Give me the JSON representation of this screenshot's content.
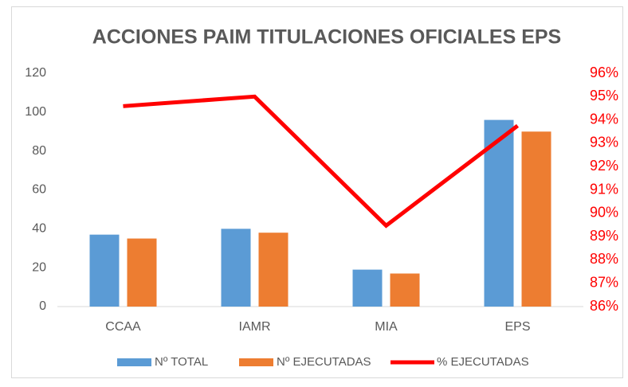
{
  "chart_data": {
    "type": "bar",
    "title": "ACCIONES PAIM TITULACIONES OFICIALES EPS",
    "categories": [
      "CCAA",
      "IAMR",
      "MIA",
      "EPS"
    ],
    "series": [
      {
        "name": "Nº TOTAL",
        "color": "#5b9bd5",
        "values": [
          37,
          40,
          19,
          96
        ]
      },
      {
        "name": "Nº EJECUTADAS",
        "color": "#ed7d31",
        "values": [
          35,
          38,
          17,
          90
        ]
      },
      {
        "name": "% EJECUTADAS",
        "color": "#ff0000",
        "type": "line",
        "axis": "y2",
        "values": [
          94.59,
          95,
          89.47,
          93.75
        ]
      }
    ],
    "ylim": [
      0,
      120
    ],
    "yticks": [
      0,
      20,
      40,
      60,
      80,
      100,
      120
    ],
    "y2lim": [
      86,
      96
    ],
    "y2ticks": [
      {
        "value": 86,
        "label": "86%"
      },
      {
        "value": 87,
        "label": "87%"
      },
      {
        "value": 88,
        "label": "88%"
      },
      {
        "value": 89,
        "label": "89%"
      },
      {
        "value": 90,
        "label": "90%"
      },
      {
        "value": 91,
        "label": "91%"
      },
      {
        "value": 92,
        "label": "92%"
      },
      {
        "value": 93,
        "label": "93%"
      },
      {
        "value": 94,
        "label": "94%"
      },
      {
        "value": 95,
        "label": "95%"
      },
      {
        "value": 96,
        "label": "96%"
      }
    ],
    "grid": false,
    "legend": "bottom"
  }
}
